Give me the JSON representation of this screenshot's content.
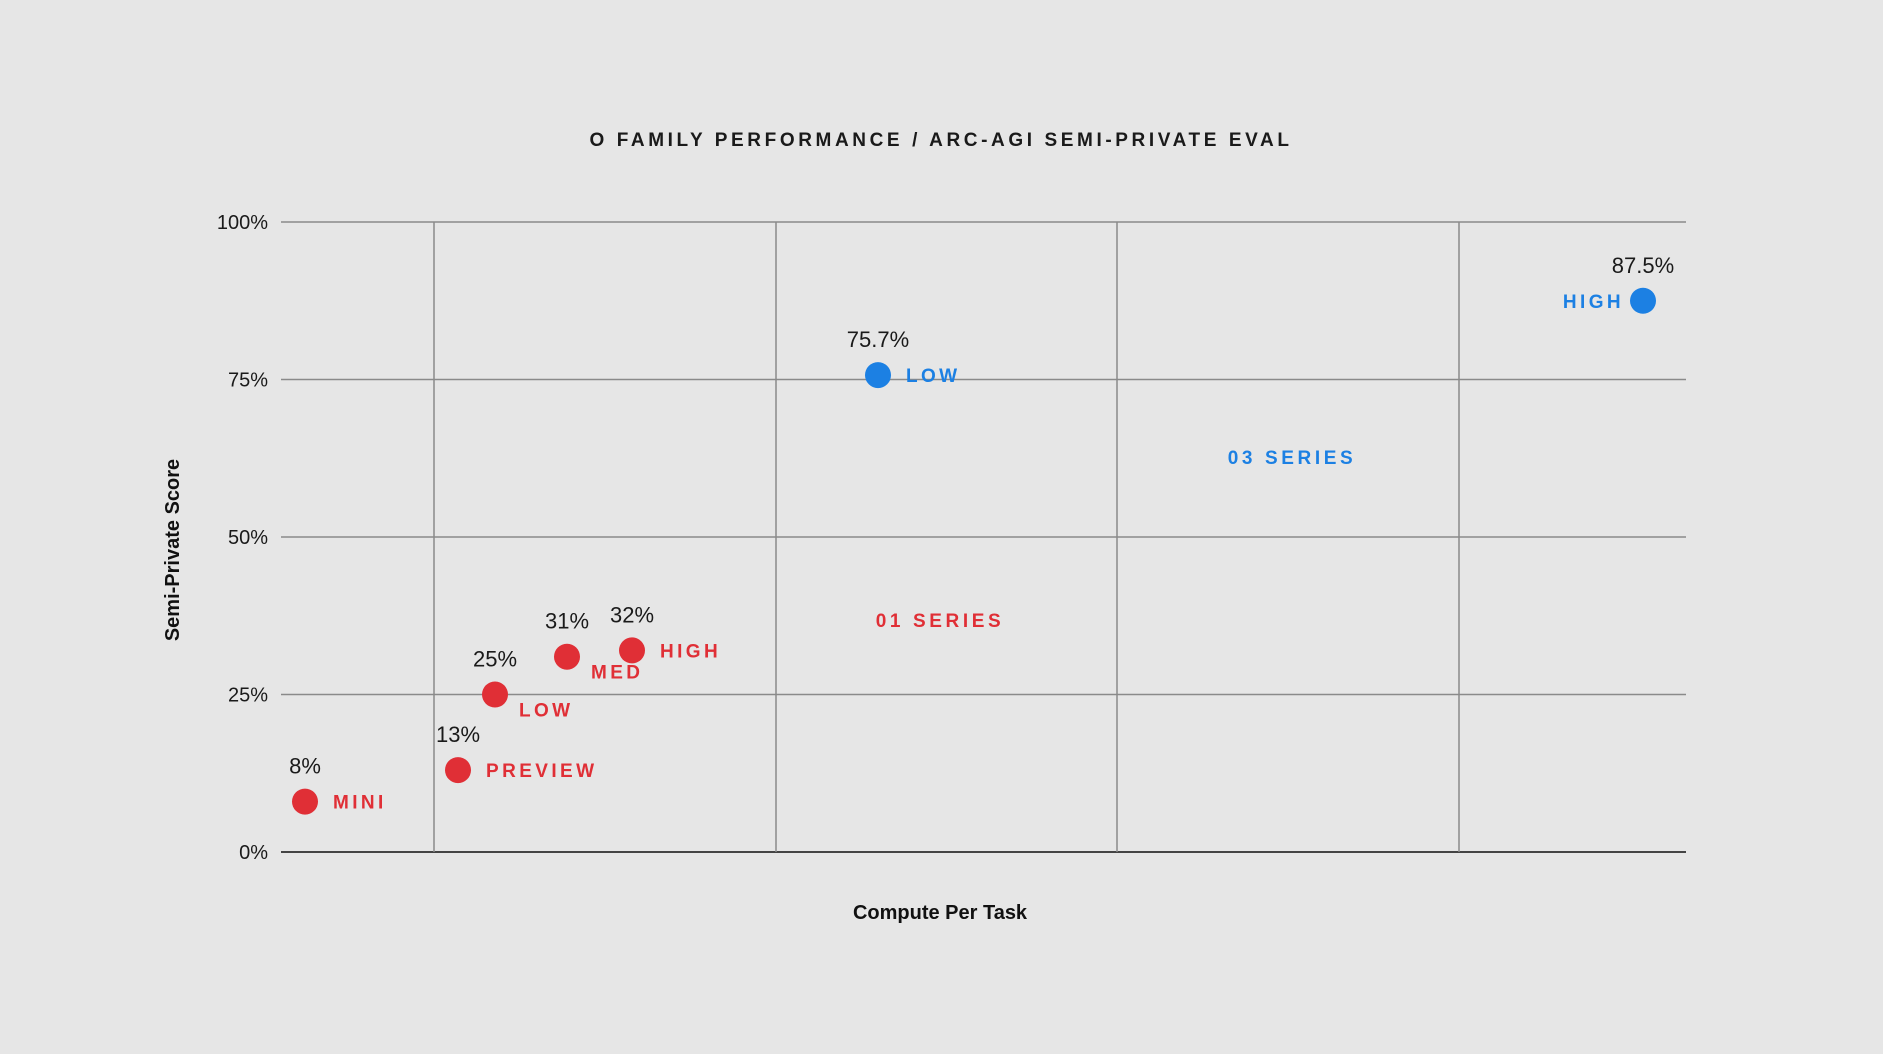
{
  "chart_data": {
    "type": "scatter",
    "title": "O FAMILY PERFORMANCE / ARC-AGI SEMI-PRIVATE EVAL",
    "xlabel": "Compute Per Task",
    "ylabel": "Semi-Private Score",
    "ylim": [
      0,
      100
    ],
    "yticks": [
      {
        "value": 0,
        "label": "0%"
      },
      {
        "value": 25,
        "label": "25%"
      },
      {
        "value": 50,
        "label": "50%"
      },
      {
        "value": 75,
        "label": "75%"
      },
      {
        "value": 100,
        "label": "100%"
      }
    ],
    "grid": true,
    "colors": {
      "o1": "#e02f36",
      "o3": "#1c80e3"
    },
    "series": [
      {
        "name": "01 SERIES",
        "color_key": "o1",
        "points": [
          {
            "label": "MINI",
            "value_label": "8%",
            "y": 8
          },
          {
            "label": "PREVIEW",
            "value_label": "13%",
            "y": 13
          },
          {
            "label": "LOW",
            "value_label": "25%",
            "y": 25
          },
          {
            "label": "MED",
            "value_label": "31%",
            "y": 31
          },
          {
            "label": "HIGH",
            "value_label": "32%",
            "y": 32
          }
        ]
      },
      {
        "name": "03 SERIES",
        "color_key": "o3",
        "points": [
          {
            "label": "LOW",
            "value_label": "75.7%",
            "y": 75.7
          },
          {
            "label": "HIGH",
            "value_label": "87.5%",
            "y": 87.5
          }
        ]
      }
    ]
  }
}
